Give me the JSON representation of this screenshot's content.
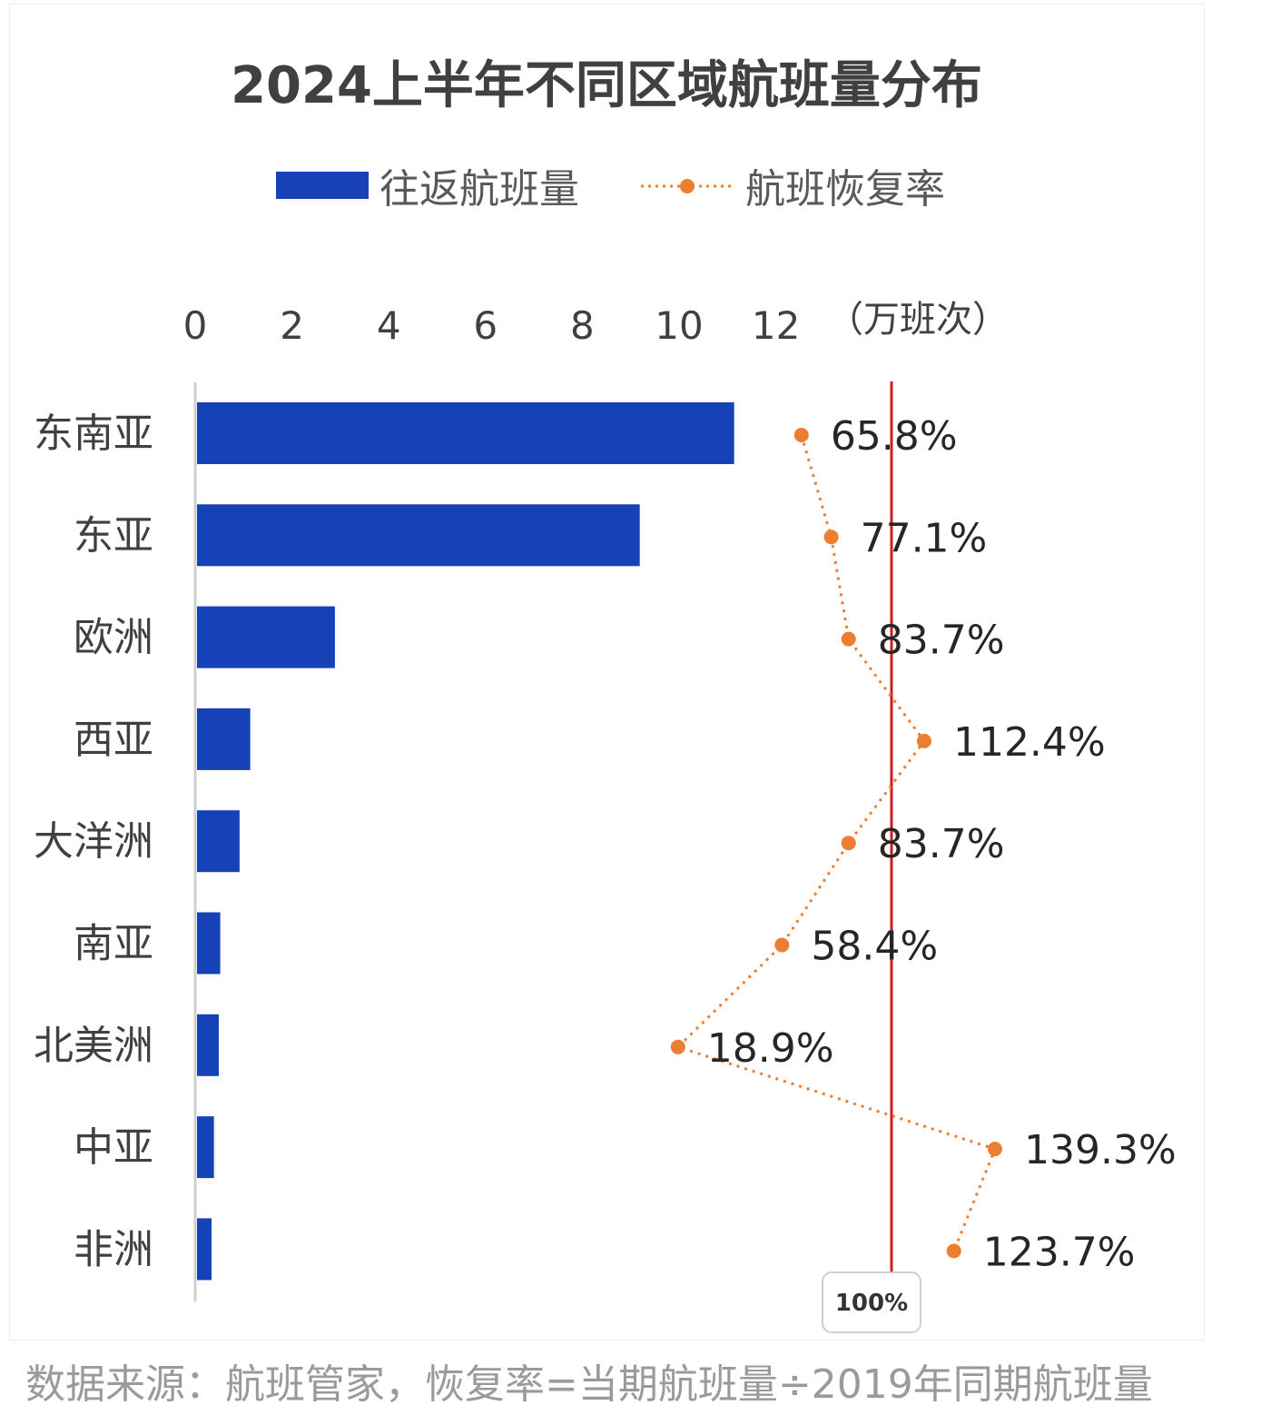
{
  "chart_data": {
    "type": "bar",
    "orientation": "horizontal",
    "title": "2024上半年不同区域航班量分布",
    "categories": [
      "东南亚",
      "东亚",
      "欧洲",
      "西亚",
      "大洋洲",
      "南亚",
      "北美洲",
      "中亚",
      "非洲"
    ],
    "x_ticks": [
      "0",
      "2",
      "4",
      "6",
      "8",
      "10",
      "12"
    ],
    "x_unit": "（万班次）",
    "xlim": [
      0,
      14
    ],
    "series": [
      {
        "name": "往返航班量",
        "type": "bar",
        "color": "#1741b7",
        "values": [
          11.1,
          9.15,
          2.85,
          1.1,
          0.88,
          0.48,
          0.45,
          0.35,
          0.3
        ]
      },
      {
        "name": "航班恢复率",
        "type": "line",
        "style": "dotted",
        "color": "#ed7d31",
        "values": [
          65.8,
          77.1,
          83.7,
          112.4,
          83.7,
          58.4,
          18.9,
          139.3,
          123.7
        ],
        "labels": [
          "65.8%",
          "77.1%",
          "83.7%",
          "112.4%",
          "83.7%",
          "58.4%",
          "18.9%",
          "139.3%",
          "123.7%"
        ]
      }
    ],
    "reference_line": {
      "value": 100,
      "label": "100%",
      "color": "#cc1f1f"
    },
    "legend_position": "top",
    "grid": false
  },
  "source_note": "数据来源：航班管家，恢复率=当期航班量÷2019年同期航班量"
}
